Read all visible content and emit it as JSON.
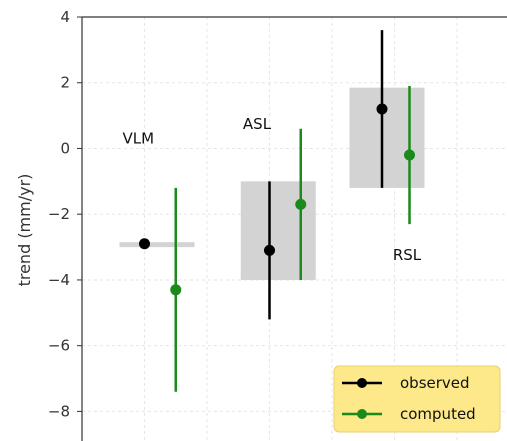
{
  "chart_data": {
    "type": "scatter",
    "title": "",
    "xlabel": "",
    "ylabel": "trend (mm/yr)",
    "ylim": [
      -8.9,
      4.0
    ],
    "yticks": [
      4,
      2,
      0,
      -2,
      -4,
      -6,
      -8
    ],
    "xlim": [
      0.0,
      3.4
    ],
    "grid": true,
    "legend_position": "bottom-right",
    "groups": [
      {
        "label": "VLM",
        "label_x": 0.45,
        "label_y": 0.15,
        "band": {
          "x0": 0.3,
          "x1": 0.9,
          "y_low": -3.0,
          "y_high": -2.85
        }
      },
      {
        "label": "ASL",
        "label_x": 1.4,
        "label_y": 0.6,
        "band": {
          "x0": 1.27,
          "x1": 1.87,
          "y_low": -4.0,
          "y_high": -1.0
        }
      },
      {
        "label": "RSL",
        "label_x": 2.6,
        "label_y": -3.4,
        "band": {
          "x0": 2.14,
          "x1": 2.74,
          "y_low": -1.2,
          "y_high": 1.85
        }
      }
    ],
    "series": [
      {
        "name": "observed",
        "color": "#000000",
        "points": [
          {
            "x": 0.5,
            "y": -2.9,
            "low": null,
            "high": null
          },
          {
            "x": 1.5,
            "y": -3.1,
            "low": -5.2,
            "high": -1.0
          },
          {
            "x": 2.4,
            "y": 1.2,
            "low": -1.2,
            "high": 3.6
          }
        ]
      },
      {
        "name": "computed",
        "color": "#1a8a1a",
        "points": [
          {
            "x": 0.75,
            "y": -4.3,
            "low": -7.4,
            "high": -1.2
          },
          {
            "x": 1.75,
            "y": -1.7,
            "low": -4.0,
            "high": 0.6
          },
          {
            "x": 2.62,
            "y": -0.2,
            "low": -2.3,
            "high": 1.9
          }
        ]
      }
    ]
  },
  "style": {
    "band_color": "#d3d3d3",
    "grid_color": "#e6e6e6",
    "legend_bg": "#fde88a"
  }
}
